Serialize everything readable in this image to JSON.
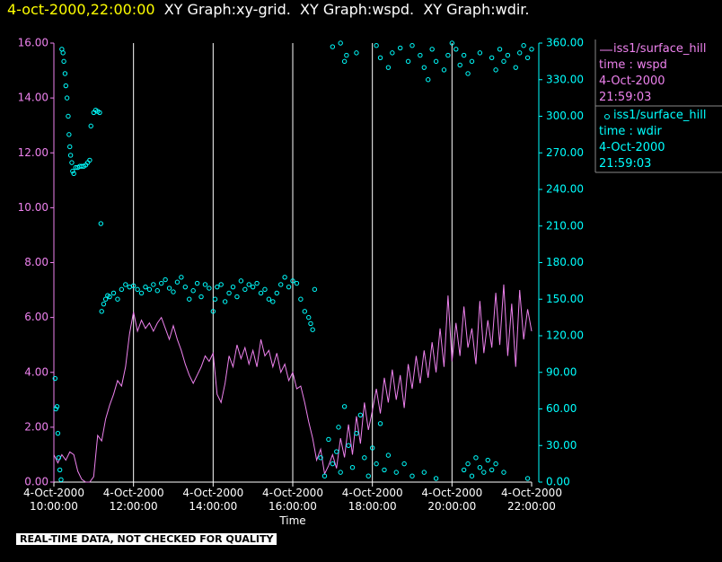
{
  "chart_data": {
    "type": "line",
    "title": "4-oct-2000,22:00:00",
    "subtitle": "XY Graph:xy-grid.  XY Graph:wspd.  XY Graph:wdir.",
    "x_label": "Time",
    "footer": "REAL-TIME DATA, NOT CHECKED FOR QUALITY",
    "grid": true,
    "xlim": [
      10,
      22
    ],
    "xticks": [
      {
        "value": 10,
        "label": "4-Oct-2000 10:00:00"
      },
      {
        "value": 12,
        "label": "4-Oct-2000 12:00:00"
      },
      {
        "value": 14,
        "label": "4-Oct-2000 14:00:00"
      },
      {
        "value": 16,
        "label": "4-Oct-2000 16:00:00"
      },
      {
        "value": 18,
        "label": "4-Oct-2000 18:00:00"
      },
      {
        "value": 20,
        "label": "4-Oct-2000 20:00:00"
      },
      {
        "value": 22,
        "label": "4-Oct-2000 22:00:00"
      }
    ],
    "ylim": [
      0,
      16
    ],
    "yticks": [
      {
        "value": 0,
        "label": "0.00"
      },
      {
        "value": 2,
        "label": "2.00"
      },
      {
        "value": 4,
        "label": "4.00"
      },
      {
        "value": 6,
        "label": "6.00"
      },
      {
        "value": 8,
        "label": "8.00"
      },
      {
        "value": 10,
        "label": "10.00"
      },
      {
        "value": 12,
        "label": "12.00"
      },
      {
        "value": 14,
        "label": "14.00"
      },
      {
        "value": 16,
        "label": "16.00"
      }
    ],
    "y2lim": [
      0,
      360
    ],
    "y2ticks": [
      {
        "value": 0,
        "label": "0.00"
      },
      {
        "value": 30,
        "label": "30.00"
      },
      {
        "value": 60,
        "label": "60.00"
      },
      {
        "value": 90,
        "label": "90.00"
      },
      {
        "value": 120,
        "label": "120.00"
      },
      {
        "value": 150,
        "label": "150.00"
      },
      {
        "value": 180,
        "label": "180.00"
      },
      {
        "value": 210,
        "label": "210.00"
      },
      {
        "value": 240,
        "label": "240.00"
      },
      {
        "value": 270,
        "label": "270.00"
      },
      {
        "value": 300,
        "label": "300.00"
      },
      {
        "value": 330,
        "label": "330.00"
      },
      {
        "value": 360,
        "label": "360.00"
      }
    ],
    "series": [
      {
        "name": "iss1/surface_hill",
        "type": "line",
        "color": "#ee82ee",
        "details": [
          "time : wspd",
          "4-Oct-2000",
          "21:59:03"
        ],
        "x": [
          10,
          10.1,
          10.2,
          10.3,
          10.4,
          10.5,
          10.6,
          10.7,
          10.8,
          10.9,
          11,
          11.1,
          11.2,
          11.3,
          11.4,
          11.5,
          11.6,
          11.7,
          11.8,
          11.9,
          12,
          12.1,
          12.2,
          12.3,
          12.4,
          12.5,
          12.6,
          12.7,
          12.8,
          12.9,
          13,
          13.1,
          13.2,
          13.3,
          13.4,
          13.5,
          13.6,
          13.7,
          13.8,
          13.9,
          14,
          14.1,
          14.2,
          14.3,
          14.4,
          14.5,
          14.6,
          14.7,
          14.8,
          14.9,
          15,
          15.1,
          15.2,
          15.3,
          15.4,
          15.5,
          15.6,
          15.7,
          15.8,
          15.9,
          16,
          16.1,
          16.2,
          16.3,
          16.4,
          16.5,
          16.6,
          16.7,
          16.8,
          16.9,
          17,
          17.1,
          17.2,
          17.3,
          17.4,
          17.5,
          17.6,
          17.7,
          17.8,
          17.9,
          18,
          18.1,
          18.2,
          18.3,
          18.4,
          18.5,
          18.6,
          18.7,
          18.8,
          18.9,
          19,
          19.1,
          19.2,
          19.3,
          19.4,
          19.5,
          19.6,
          19.7,
          19.8,
          19.9,
          20,
          20.1,
          20.2,
          20.3,
          20.4,
          20.5,
          20.6,
          20.7,
          20.8,
          20.9,
          21,
          21.1,
          21.2,
          21.3,
          21.4,
          21.5,
          21.6,
          21.7,
          21.8,
          21.9,
          22
        ],
        "values": [
          1.0,
          0.7,
          1.0,
          0.8,
          1.1,
          1.0,
          0.4,
          0.1,
          0.0,
          0.0,
          0.2,
          1.7,
          1.5,
          2.3,
          2.8,
          3.2,
          3.7,
          3.5,
          4.2,
          5.4,
          6.2,
          5.5,
          5.9,
          5.6,
          5.8,
          5.5,
          5.8,
          6.0,
          5.6,
          5.2,
          5.7,
          5.2,
          4.8,
          4.3,
          3.9,
          3.6,
          3.9,
          4.2,
          4.6,
          4.4,
          4.7,
          3.2,
          2.9,
          3.6,
          4.6,
          4.2,
          5.0,
          4.5,
          4.9,
          4.3,
          4.8,
          4.2,
          5.2,
          4.6,
          4.8,
          4.2,
          4.7,
          4.0,
          4.3,
          3.7,
          4.0,
          3.4,
          3.5,
          2.9,
          2.2,
          1.6,
          0.8,
          1.2,
          0.3,
          0.6,
          1.0,
          0.5,
          1.6,
          0.9,
          2.1,
          1.0,
          2.4,
          1.4,
          2.9,
          1.9,
          2.6,
          3.4,
          2.5,
          3.8,
          2.9,
          4.1,
          3.0,
          3.9,
          2.7,
          4.3,
          3.4,
          4.6,
          3.6,
          4.8,
          3.8,
          5.1,
          4.0,
          5.6,
          4.2,
          6.8,
          4.4,
          5.8,
          4.6,
          6.4,
          4.9,
          5.6,
          4.3,
          6.6,
          4.7,
          5.9,
          4.9,
          6.9,
          5.0,
          7.2,
          4.6,
          6.5,
          4.2,
          7.0,
          5.2,
          6.3,
          5.5
        ]
      },
      {
        "name": "iss1/surface_hill",
        "type": "scatter",
        "axis": "y2",
        "color": "#00ffff",
        "details": [
          "time : wdir",
          "4-Oct-2000",
          "21:59:03"
        ],
        "x": [
          10.03,
          10.05,
          10.08,
          10.1,
          10.12,
          10.15,
          10.18,
          10.2,
          10.23,
          10.25,
          10.28,
          10.3,
          10.33,
          10.36,
          10.38,
          10.4,
          10.42,
          10.45,
          10.47,
          10.5,
          10.55,
          10.6,
          10.65,
          10.7,
          10.75,
          10.8,
          10.85,
          10.9,
          10.93,
          11,
          11.05,
          11.1,
          11.15,
          11.18,
          11.2,
          11.25,
          11.3,
          11.35,
          11.4,
          11.5,
          11.6,
          11.7,
          11.8,
          11.9,
          12,
          12.1,
          12.2,
          12.3,
          12.4,
          12.5,
          12.6,
          12.7,
          12.8,
          12.9,
          13,
          13.1,
          13.2,
          13.3,
          13.4,
          13.5,
          13.6,
          13.7,
          13.8,
          13.9,
          14,
          14.05,
          14.1,
          14.2,
          14.3,
          14.4,
          14.5,
          14.6,
          14.7,
          14.8,
          14.9,
          15,
          15.1,
          15.2,
          15.3,
          15.4,
          15.5,
          15.6,
          15.7,
          15.8,
          15.9,
          16,
          16.1,
          16.2,
          16.3,
          16.4,
          16.45,
          16.5,
          16.55,
          17,
          17.2,
          17.3,
          17.35,
          17.6,
          18.1,
          18.2,
          18.4,
          18.5,
          18.7,
          18.9,
          19,
          19.2,
          19.3,
          19.5,
          19.6,
          19.8,
          19.9,
          20,
          20.1,
          20.2,
          20.3,
          20.5,
          20.7,
          21,
          21.1,
          21.2,
          21.3,
          21.4,
          21.6,
          21.7,
          21.8,
          21.9,
          22,
          20.4,
          19.4,
          16.7,
          16.8,
          16.9,
          17,
          17.1,
          17.15,
          17.2,
          17.3,
          17.4,
          17.5,
          17.6,
          17.7,
          17.8,
          17.9,
          18,
          18.1,
          18.2,
          18.3,
          18.4,
          18.6,
          18.8,
          19,
          19.3,
          19.6,
          20.3,
          20.4,
          20.5,
          20.6,
          20.7,
          20.8,
          20.9,
          21,
          21.1,
          21.3,
          21.9
        ],
        "values": [
          85,
          60,
          62,
          40,
          20,
          10,
          2,
          355,
          352,
          345,
          335,
          325,
          315,
          300,
          285,
          275,
          268,
          262,
          255,
          253,
          258,
          258,
          259,
          259,
          259,
          260,
          262,
          264,
          292,
          303,
          305,
          304,
          303,
          212,
          140,
          146,
          150,
          153,
          152,
          155,
          150,
          158,
          162,
          160,
          161,
          158,
          155,
          160,
          158,
          162,
          157,
          163,
          166,
          159,
          156,
          164,
          168,
          160,
          150,
          157,
          163,
          152,
          162,
          159,
          140,
          150,
          160,
          162,
          148,
          155,
          160,
          152,
          165,
          158,
          162,
          160,
          163,
          155,
          158,
          150,
          148,
          155,
          162,
          168,
          160,
          165,
          163,
          150,
          140,
          135,
          130,
          125,
          158,
          357,
          360,
          345,
          350,
          352,
          358,
          348,
          340,
          352,
          356,
          345,
          358,
          350,
          340,
          355,
          345,
          338,
          350,
          360,
          355,
          342,
          350,
          345,
          352,
          348,
          338,
          355,
          345,
          350,
          340,
          352,
          358,
          348,
          355,
          335,
          330,
          20,
          5,
          35,
          15,
          25,
          45,
          8,
          62,
          30,
          12,
          40,
          55,
          20,
          5,
          28,
          15,
          48,
          10,
          22,
          8,
          15,
          5,
          8,
          3,
          10,
          15,
          5,
          20,
          12,
          8,
          18,
          10,
          15,
          8,
          3
        ]
      }
    ]
  }
}
